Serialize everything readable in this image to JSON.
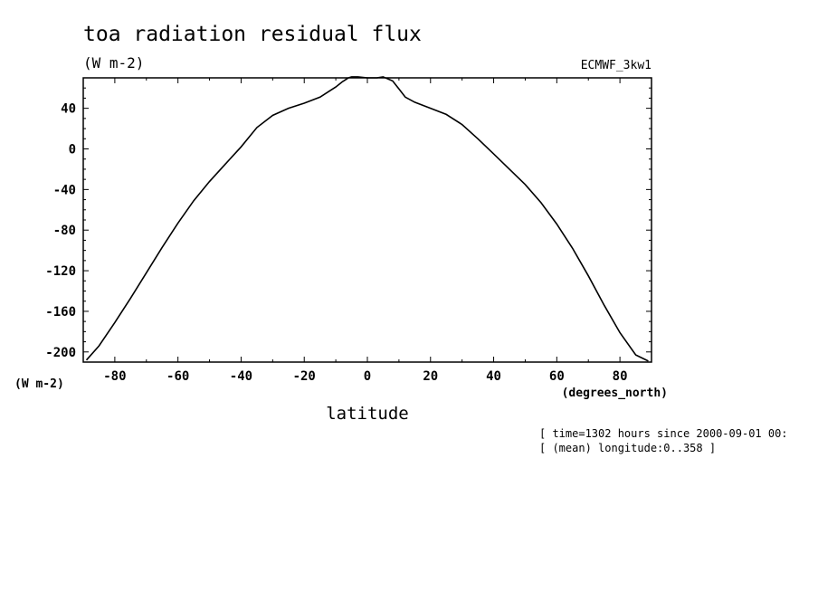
{
  "chart_data": {
    "type": "line",
    "title": "toa radiation residual flux",
    "units": "(W m-2)",
    "dataset": "ECMWF_3kw1",
    "ylabel": "(W m-2)",
    "xlabel": "latitude",
    "xunits": "(degrees_north)",
    "xlim": [
      -90,
      90
    ],
    "ylim": [
      -210,
      70
    ],
    "xticks": [
      -80,
      -60,
      -40,
      -20,
      0,
      20,
      40,
      60,
      80
    ],
    "yticks": [
      40,
      0,
      -40,
      -80,
      -120,
      -160,
      -200
    ],
    "grid": false,
    "series": [
      {
        "x": [
          -89,
          -85,
          -80,
          -75,
          -70,
          -65,
          -60,
          -55,
          -50,
          -45,
          -40,
          -35,
          -30,
          -25,
          -20,
          -15,
          -12,
          -10,
          -8,
          -6,
          -5,
          -3,
          0,
          3,
          5,
          8,
          10,
          12,
          15,
          20,
          25,
          30,
          35,
          40,
          45,
          50,
          55,
          60,
          65,
          70,
          75,
          80,
          85,
          89
        ],
        "y": [
          -208,
          -194,
          -171,
          -147,
          -122,
          -97,
          -73,
          -51,
          -32,
          -15,
          2,
          21,
          33,
          40,
          45,
          51,
          57,
          61,
          66,
          70,
          71,
          71,
          70,
          70,
          71,
          67,
          59,
          51,
          46,
          40,
          34,
          24,
          10,
          -5,
          -20,
          -35,
          -53,
          -74,
          -98,
          -125,
          -154,
          -181,
          -203,
          -209
        ]
      }
    ]
  },
  "footer": {
    "line1": "[ time=1302 hours since 2000-09-01 00:",
    "line2": "[ (mean) longitude:0..358 ]"
  }
}
